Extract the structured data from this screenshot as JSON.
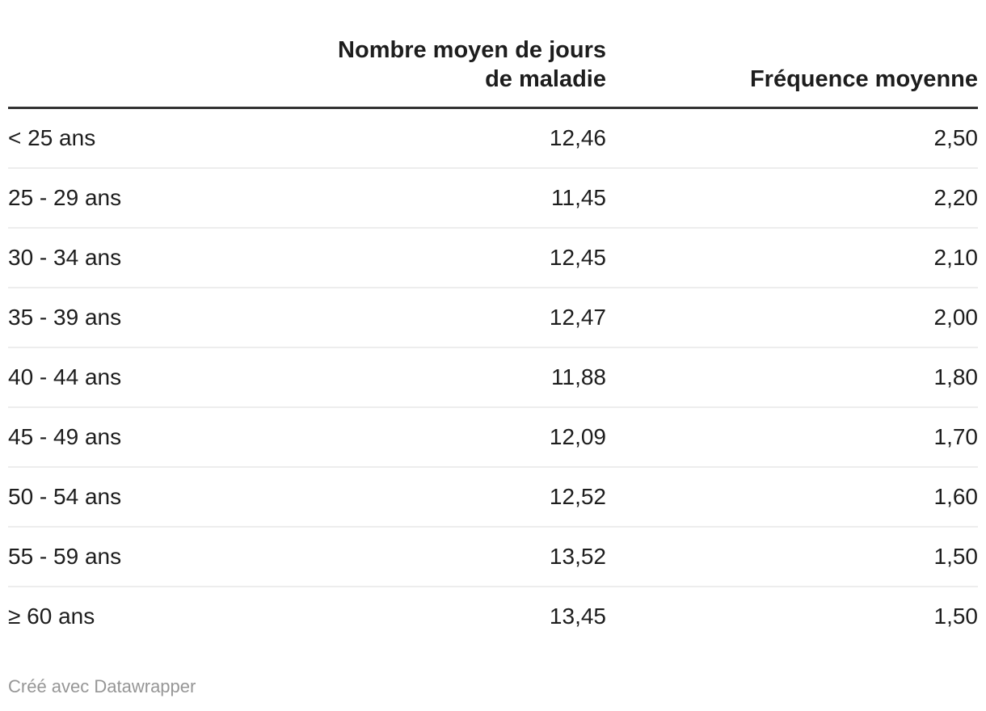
{
  "colors": {
    "background": "#ffffff",
    "text": "#1d1d1d",
    "header_rule": "#333333",
    "row_divider": "#ededed",
    "footer_text": "#969696"
  },
  "table": {
    "header": {
      "age_label": "",
      "days_line1": "Nombre moyen de jours",
      "days_line2": "de maladie",
      "freq_label": "Fréquence moyenne"
    },
    "rows": [
      {
        "age": "< 25 ans",
        "jours": "12,46",
        "freq": "2,50"
      },
      {
        "age": "25 - 29 ans",
        "jours": "11,45",
        "freq": "2,20"
      },
      {
        "age": "30 - 34 ans",
        "jours": "12,45",
        "freq": "2,10"
      },
      {
        "age": "35 - 39 ans",
        "jours": "12,47",
        "freq": "2,00"
      },
      {
        "age": "40 - 44 ans",
        "jours": "11,88",
        "freq": "1,80"
      },
      {
        "age": "45 - 49 ans",
        "jours": "12,09",
        "freq": "1,70"
      },
      {
        "age": "50 - 54 ans",
        "jours": "12,52",
        "freq": "1,60"
      },
      {
        "age": "55 - 59 ans",
        "jours": "13,52",
        "freq": "1,50"
      },
      {
        "age": "≥ 60 ans",
        "jours": "13,45",
        "freq": "1,50"
      }
    ]
  },
  "footer": {
    "credit": "Créé avec Datawrapper"
  },
  "chart_data": {
    "type": "table",
    "title": "",
    "columns": [
      "",
      "Nombre moyen de jours de maladie",
      "Fréquence moyenne"
    ],
    "rows": [
      [
        "< 25 ans",
        12.46,
        2.5
      ],
      [
        "25 - 29 ans",
        11.45,
        2.2
      ],
      [
        "30 - 34 ans",
        12.45,
        2.1
      ],
      [
        "35 - 39 ans",
        12.47,
        2.0
      ],
      [
        "40 - 44 ans",
        11.88,
        1.8
      ],
      [
        "45 - 49 ans",
        12.09,
        1.7
      ],
      [
        "50 - 54 ans",
        12.52,
        1.6
      ],
      [
        "55 - 59 ans",
        13.52,
        1.5
      ],
      [
        "≥ 60 ans",
        13.45,
        1.5
      ]
    ],
    "number_format": "french-comma-decimal",
    "layout": {
      "col1_align": "left",
      "col2_align": "right",
      "col3_align": "right",
      "header_rule": true,
      "row_dividers": true
    }
  }
}
